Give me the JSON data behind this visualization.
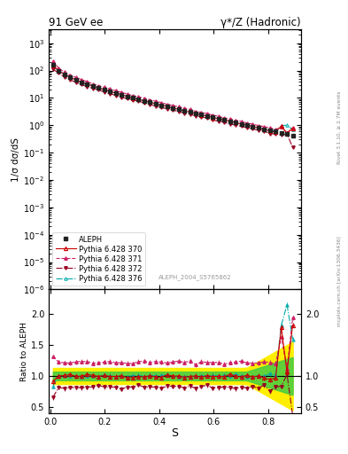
{
  "title_left": "91 GeV ee",
  "title_right": "γ*/Z (Hadronic)",
  "xlabel": "S",
  "ylabel_main": "1/σ dσ/dS",
  "ylabel_ratio": "Ratio to ALEPH",
  "right_label_top": "Rivet 3.1.10, ≥ 2.7M events",
  "right_label_bot": "mcplots.cern.ch [arXiv:1306.3436]",
  "analysis_label": "ALEPH_2004_S5765862",
  "ylim_main_log": [
    -6,
    3.5
  ],
  "ylim_ratio": [
    0.4,
    2.4
  ],
  "xlim": [
    -0.005,
    0.92
  ],
  "yticks_ratio_left": [
    0.5,
    1.0,
    1.5,
    2.0
  ],
  "yticks_ratio_right": [
    0.5,
    1.0,
    2.0
  ],
  "colors": {
    "aleph": "#222222",
    "p370": "#cc0000",
    "p371": "#cc2266",
    "p372": "#990022",
    "p376": "#00aaaa"
  },
  "band_yellow": "#ffee00",
  "band_green": "#44cc44"
}
